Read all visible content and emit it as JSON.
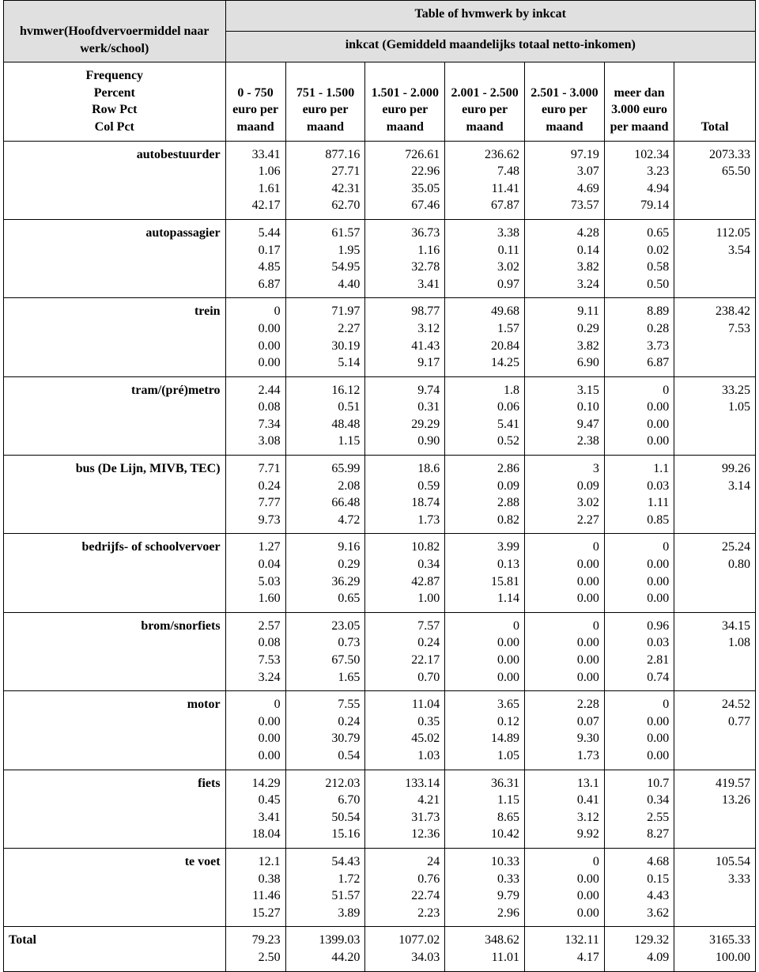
{
  "table": {
    "super_title": "Table of hvmwerk by inkcat",
    "row_var_label": "hvmwer(Hoofdvervoermiddel naar werk/school)",
    "col_var_label": "inkcat (Gemiddeld maandelijks totaal netto-inkomen)",
    "stat_labels": [
      "Frequency",
      "Percent",
      "Row Pct",
      "Col Pct"
    ],
    "columns": [
      "0 - 750 euro per maand",
      "751 - 1.500 euro  per maand",
      "1.501 - 2.000 euro per maand",
      "2.001 - 2.500 euro  per maand",
      "2.501 - 3.000 euro per maand",
      "meer dan 3.000 euro per maand"
    ],
    "total_label": "Total",
    "rows": [
      {
        "label": "autobestuurder",
        "cells": [
          [
            "33.41",
            "1.06",
            "1.61",
            "42.17"
          ],
          [
            "877.16",
            "27.71",
            "42.31",
            "62.70"
          ],
          [
            "726.61",
            "22.96",
            "35.05",
            "67.46"
          ],
          [
            "236.62",
            "7.48",
            "11.41",
            "67.87"
          ],
          [
            "97.19",
            "3.07",
            "4.69",
            "73.57"
          ],
          [
            "102.34",
            "3.23",
            "4.94",
            "79.14"
          ]
        ],
        "total": [
          "2073.33",
          "65.50"
        ]
      },
      {
        "label": "autopassagier",
        "cells": [
          [
            "5.44",
            "0.17",
            "4.85",
            "6.87"
          ],
          [
            "61.57",
            "1.95",
            "54.95",
            "4.40"
          ],
          [
            "36.73",
            "1.16",
            "32.78",
            "3.41"
          ],
          [
            "3.38",
            "0.11",
            "3.02",
            "0.97"
          ],
          [
            "4.28",
            "0.14",
            "3.82",
            "3.24"
          ],
          [
            "0.65",
            "0.02",
            "0.58",
            "0.50"
          ]
        ],
        "total": [
          "112.05",
          "3.54"
        ]
      },
      {
        "label": "trein",
        "cells": [
          [
            "0",
            "0.00",
            "0.00",
            "0.00"
          ],
          [
            "71.97",
            "2.27",
            "30.19",
            "5.14"
          ],
          [
            "98.77",
            "3.12",
            "41.43",
            "9.17"
          ],
          [
            "49.68",
            "1.57",
            "20.84",
            "14.25"
          ],
          [
            "9.11",
            "0.29",
            "3.82",
            "6.90"
          ],
          [
            "8.89",
            "0.28",
            "3.73",
            "6.87"
          ]
        ],
        "total": [
          "238.42",
          "7.53"
        ]
      },
      {
        "label": "tram/(pré)metro",
        "cells": [
          [
            "2.44",
            "0.08",
            "7.34",
            "3.08"
          ],
          [
            "16.12",
            "0.51",
            "48.48",
            "1.15"
          ],
          [
            "9.74",
            "0.31",
            "29.29",
            "0.90"
          ],
          [
            "1.8",
            "0.06",
            "5.41",
            "0.52"
          ],
          [
            "3.15",
            "0.10",
            "9.47",
            "2.38"
          ],
          [
            "0",
            "0.00",
            "0.00",
            "0.00"
          ]
        ],
        "total": [
          "33.25",
          "1.05"
        ]
      },
      {
        "label": "bus (De Lijn, MIVB, TEC)",
        "cells": [
          [
            "7.71",
            "0.24",
            "7.77",
            "9.73"
          ],
          [
            "65.99",
            "2.08",
            "66.48",
            "4.72"
          ],
          [
            "18.6",
            "0.59",
            "18.74",
            "1.73"
          ],
          [
            "2.86",
            "0.09",
            "2.88",
            "0.82"
          ],
          [
            "3",
            "0.09",
            "3.02",
            "2.27"
          ],
          [
            "1.1",
            "0.03",
            "1.11",
            "0.85"
          ]
        ],
        "total": [
          "99.26",
          "3.14"
        ]
      },
      {
        "label": "bedrijfs- of schoolvervoer",
        "cells": [
          [
            "1.27",
            "0.04",
            "5.03",
            "1.60"
          ],
          [
            "9.16",
            "0.29",
            "36.29",
            "0.65"
          ],
          [
            "10.82",
            "0.34",
            "42.87",
            "1.00"
          ],
          [
            "3.99",
            "0.13",
            "15.81",
            "1.14"
          ],
          [
            "0",
            "0.00",
            "0.00",
            "0.00"
          ],
          [
            "0",
            "0.00",
            "0.00",
            "0.00"
          ]
        ],
        "total": [
          "25.24",
          "0.80"
        ]
      },
      {
        "label": "brom/snorfiets",
        "cells": [
          [
            "2.57",
            "0.08",
            "7.53",
            "3.24"
          ],
          [
            "23.05",
            "0.73",
            "67.50",
            "1.65"
          ],
          [
            "7.57",
            "0.24",
            "22.17",
            "0.70"
          ],
          [
            "0",
            "0.00",
            "0.00",
            "0.00"
          ],
          [
            "0",
            "0.00",
            "0.00",
            "0.00"
          ],
          [
            "0.96",
            "0.03",
            "2.81",
            "0.74"
          ]
        ],
        "total": [
          "34.15",
          "1.08"
        ]
      },
      {
        "label": "motor",
        "cells": [
          [
            "0",
            "0.00",
            "0.00",
            "0.00"
          ],
          [
            "7.55",
            "0.24",
            "30.79",
            "0.54"
          ],
          [
            "11.04",
            "0.35",
            "45.02",
            "1.03"
          ],
          [
            "3.65",
            "0.12",
            "14.89",
            "1.05"
          ],
          [
            "2.28",
            "0.07",
            "9.30",
            "1.73"
          ],
          [
            "0",
            "0.00",
            "0.00",
            "0.00"
          ]
        ],
        "total": [
          "24.52",
          "0.77"
        ]
      },
      {
        "label": "fiets",
        "cells": [
          [
            "14.29",
            "0.45",
            "3.41",
            "18.04"
          ],
          [
            "212.03",
            "6.70",
            "50.54",
            "15.16"
          ],
          [
            "133.14",
            "4.21",
            "31.73",
            "12.36"
          ],
          [
            "36.31",
            "1.15",
            "8.65",
            "10.42"
          ],
          [
            "13.1",
            "0.41",
            "3.12",
            "9.92"
          ],
          [
            "10.7",
            "0.34",
            "2.55",
            "8.27"
          ]
        ],
        "total": [
          "419.57",
          "13.26"
        ]
      },
      {
        "label": "te voet",
        "cells": [
          [
            "12.1",
            "0.38",
            "11.46",
            "15.27"
          ],
          [
            "54.43",
            "1.72",
            "51.57",
            "3.89"
          ],
          [
            "24",
            "0.76",
            "22.74",
            "2.23"
          ],
          [
            "10.33",
            "0.33",
            "9.79",
            "2.96"
          ],
          [
            "0",
            "0.00",
            "0.00",
            "0.00"
          ],
          [
            "4.68",
            "0.15",
            "4.43",
            "3.62"
          ]
        ],
        "total": [
          "105.54",
          "3.33"
        ]
      }
    ],
    "col_totals": {
      "label": "Total",
      "cells": [
        [
          "79.23",
          "2.50"
        ],
        [
          "1399.03",
          "44.20"
        ],
        [
          "1077.02",
          "34.03"
        ],
        [
          "348.62",
          "11.01"
        ],
        [
          "132.11",
          "4.17"
        ],
        [
          "129.32",
          "4.09"
        ]
      ],
      "grand": [
        "3165.33",
        "100.00"
      ]
    },
    "col_widths_pct": [
      29.5,
      8.0,
      10.6,
      10.6,
      10.6,
      10.6,
      9.3,
      10.8
    ]
  }
}
